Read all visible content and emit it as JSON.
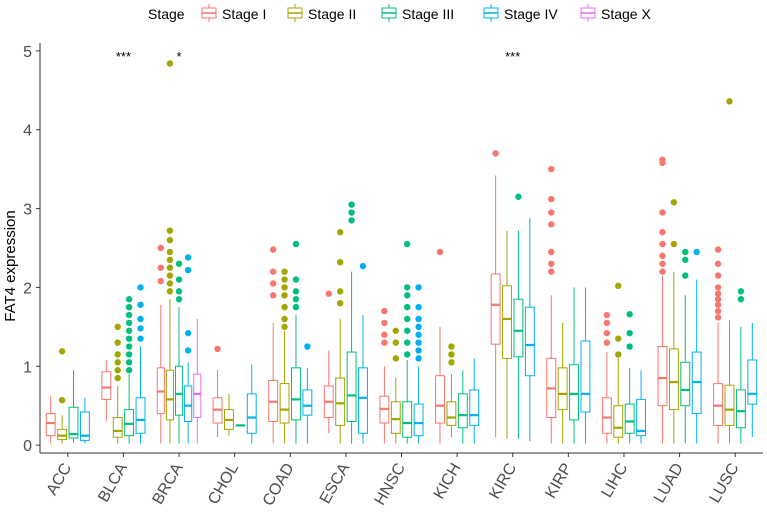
{
  "chart_data": {
    "type": "boxplot",
    "title": "",
    "xlabel": "",
    "ylabel": "FAT4 expression",
    "ylim": [
      -0.1,
      5.1
    ],
    "yticks": [
      0,
      1,
      2,
      3,
      4,
      5
    ],
    "grid": false,
    "legend": {
      "title": "Stage",
      "position": "top",
      "entries": [
        {
          "name": "Stage I",
          "color": "#F8766D"
        },
        {
          "name": "Stage II",
          "color": "#A3A500"
        },
        {
          "name": "Stage III",
          "color": "#00BF7D"
        },
        {
          "name": "Stage IV",
          "color": "#00B0F6"
        },
        {
          "name": "Stage X",
          "color": "#E76BF3"
        }
      ]
    },
    "categories": [
      "ACC",
      "BLCA",
      "BRCA",
      "CHOL",
      "COAD",
      "ESCA",
      "HNSC",
      "KICH",
      "KIRC",
      "KIRP",
      "LIHC",
      "LUAD",
      "LUSC"
    ],
    "significance": [
      {
        "category": "BLCA",
        "label": "***",
        "y": 4.95
      },
      {
        "category": "BRCA",
        "label": "*",
        "y": 4.95
      },
      {
        "category": "KIRC",
        "label": "***",
        "y": 4.95
      }
    ],
    "groups": [
      {
        "category": "ACC",
        "stages": [
          "Stage I",
          "Stage II",
          "Stage III",
          "Stage IV"
        ],
        "boxes": [
          {
            "stage": "Stage I",
            "min": 0.02,
            "q1": 0.12,
            "median": 0.28,
            "q3": 0.4,
            "max": 0.63,
            "outliers": []
          },
          {
            "stage": "Stage II",
            "min": 0.02,
            "q1": 0.07,
            "median": 0.12,
            "q3": 0.2,
            "max": 0.38,
            "outliers": [
              0.57,
              1.19
            ]
          },
          {
            "stage": "Stage III",
            "min": 0.03,
            "q1": 0.09,
            "median": 0.14,
            "q3": 0.48,
            "max": 0.95,
            "outliers": []
          },
          {
            "stage": "Stage IV",
            "min": 0.02,
            "q1": 0.06,
            "median": 0.12,
            "q3": 0.42,
            "max": 0.6,
            "outliers": []
          }
        ]
      },
      {
        "category": "BLCA",
        "stages": [
          "Stage I",
          "Stage II",
          "Stage III",
          "Stage IV"
        ],
        "boxes": [
          {
            "stage": "Stage I",
            "min": 0.3,
            "q1": 0.58,
            "median": 0.73,
            "q3": 0.93,
            "max": 1.08,
            "outliers": []
          },
          {
            "stage": "Stage II",
            "min": 0.02,
            "q1": 0.1,
            "median": 0.18,
            "q3": 0.35,
            "max": 0.75,
            "outliers": [
              0.85,
              0.95,
              1.05,
              1.15,
              1.3,
              1.5
            ]
          },
          {
            "stage": "Stage III",
            "min": 0.02,
            "q1": 0.12,
            "median": 0.27,
            "q3": 0.45,
            "max": 0.9,
            "outliers": [
              0.95,
              1.05,
              1.15,
              1.25,
              1.35,
              1.45,
              1.55,
              1.65,
              1.75,
              1.85
            ]
          },
          {
            "stage": "Stage IV",
            "min": 0.02,
            "q1": 0.15,
            "median": 0.32,
            "q3": 0.6,
            "max": 1.25,
            "outliers": [
              1.35,
              1.48,
              1.6,
              1.78,
              2.0
            ]
          }
        ]
      },
      {
        "category": "BRCA",
        "stages": [
          "Stage I",
          "Stage II",
          "Stage III",
          "Stage IV",
          "Stage X"
        ],
        "boxes": [
          {
            "stage": "Stage I",
            "min": 0.02,
            "q1": 0.4,
            "median": 0.68,
            "q3": 0.98,
            "max": 1.78,
            "outliers": [
              2.08,
              2.25,
              2.5
            ]
          },
          {
            "stage": "Stage II",
            "min": 0.02,
            "q1": 0.32,
            "median": 0.58,
            "q3": 0.95,
            "max": 1.85,
            "outliers": [
              1.95,
              2.05,
              2.15,
              2.25,
              2.35,
              2.45,
              2.6,
              2.72,
              4.84
            ]
          },
          {
            "stage": "Stage III",
            "min": 0.02,
            "q1": 0.38,
            "median": 0.65,
            "q3": 1.0,
            "max": 1.75,
            "outliers": [
              1.85,
              1.95,
              2.1,
              2.3
            ]
          },
          {
            "stage": "Stage IV",
            "min": 0.02,
            "q1": 0.3,
            "median": 0.5,
            "q3": 0.75,
            "max": 1.05,
            "outliers": [
              1.2,
              1.42,
              2.22,
              2.38
            ]
          },
          {
            "stage": "Stage X",
            "min": 0.02,
            "q1": 0.35,
            "median": 0.65,
            "q3": 0.9,
            "max": 1.6,
            "outliers": []
          }
        ]
      },
      {
        "category": "CHOL",
        "stages": [
          "Stage I",
          "Stage II",
          "Stage III",
          "Stage IV"
        ],
        "boxes": [
          {
            "stage": "Stage I",
            "min": 0.1,
            "q1": 0.28,
            "median": 0.45,
            "q3": 0.6,
            "max": 0.95,
            "outliers": [
              1.22
            ]
          },
          {
            "stage": "Stage II",
            "min": 0.12,
            "q1": 0.2,
            "median": 0.32,
            "q3": 0.45,
            "max": 0.65,
            "outliers": []
          },
          {
            "stage": "Stage III",
            "min": 0.25,
            "q1": 0.25,
            "median": 0.25,
            "q3": 0.25,
            "max": 0.25,
            "outliers": []
          },
          {
            "stage": "Stage IV",
            "min": 0.02,
            "q1": 0.15,
            "median": 0.35,
            "q3": 0.65,
            "max": 1.02,
            "outliers": []
          }
        ]
      },
      {
        "category": "COAD",
        "stages": [
          "Stage I",
          "Stage II",
          "Stage III",
          "Stage IV"
        ],
        "boxes": [
          {
            "stage": "Stage I",
            "min": 0.02,
            "q1": 0.3,
            "median": 0.55,
            "q3": 0.82,
            "max": 1.55,
            "outliers": [
              1.9,
              2.05,
              2.2,
              2.48
            ]
          },
          {
            "stage": "Stage II",
            "min": 0.02,
            "q1": 0.28,
            "median": 0.45,
            "q3": 0.78,
            "max": 1.45,
            "outliers": [
              1.5,
              1.6,
              1.75,
              1.9,
              2.0,
              2.1,
              2.2
            ]
          },
          {
            "stage": "Stage III",
            "min": 0.02,
            "q1": 0.32,
            "median": 0.58,
            "q3": 0.98,
            "max": 1.65,
            "outliers": [
              1.75,
              1.85,
              1.95,
              2.1,
              2.55
            ]
          },
          {
            "stage": "Stage IV",
            "min": 0.02,
            "q1": 0.38,
            "median": 0.5,
            "q3": 0.7,
            "max": 0.98,
            "outliers": [
              1.25
            ]
          }
        ]
      },
      {
        "category": "ESCA",
        "stages": [
          "Stage I",
          "Stage II",
          "Stage III",
          "Stage IV"
        ],
        "boxes": [
          {
            "stage": "Stage I",
            "min": 0.15,
            "q1": 0.35,
            "median": 0.55,
            "q3": 0.75,
            "max": 1.2,
            "outliers": [
              1.92
            ]
          },
          {
            "stage": "Stage II",
            "min": 0.02,
            "q1": 0.25,
            "median": 0.53,
            "q3": 0.85,
            "max": 1.6,
            "outliers": [
              1.8,
              1.95,
              2.32,
              2.7
            ]
          },
          {
            "stage": "Stage III",
            "min": 0.02,
            "q1": 0.3,
            "median": 0.63,
            "q3": 1.18,
            "max": 2.2,
            "outliers": [
              2.85,
              2.95,
              3.05
            ]
          },
          {
            "stage": "Stage IV",
            "min": 0.02,
            "q1": 0.15,
            "median": 0.6,
            "q3": 0.98,
            "max": 1.65,
            "outliers": [
              2.27
            ]
          }
        ]
      },
      {
        "category": "HNSC",
        "stages": [
          "Stage I",
          "Stage II",
          "Stage III",
          "Stage IV"
        ],
        "boxes": [
          {
            "stage": "Stage I",
            "min": 0.02,
            "q1": 0.28,
            "median": 0.46,
            "q3": 0.62,
            "max": 1.0,
            "outliers": [
              1.3,
              1.4,
              1.55,
              1.7
            ]
          },
          {
            "stage": "Stage II",
            "min": 0.02,
            "q1": 0.15,
            "median": 0.33,
            "q3": 0.55,
            "max": 0.85,
            "outliers": [
              1.1,
              1.3,
              1.45
            ]
          },
          {
            "stage": "Stage III",
            "min": 0.02,
            "q1": 0.1,
            "median": 0.28,
            "q3": 0.55,
            "max": 1.08,
            "outliers": [
              1.15,
              1.3,
              1.45,
              1.6,
              1.75,
              1.9,
              2.0,
              2.55
            ]
          },
          {
            "stage": "Stage IV",
            "min": 0.02,
            "q1": 0.12,
            "median": 0.28,
            "q3": 0.52,
            "max": 1.0,
            "outliers": [
              1.1,
              1.2,
              1.3,
              1.4,
              1.5,
              1.6,
              1.75,
              2.0
            ]
          }
        ]
      },
      {
        "category": "KICH",
        "stages": [
          "Stage I",
          "Stage II",
          "Stage III",
          "Stage IV"
        ],
        "boxes": [
          {
            "stage": "Stage I",
            "min": 0.02,
            "q1": 0.28,
            "median": 0.5,
            "q3": 0.88,
            "max": 1.5,
            "outliers": [
              2.45
            ]
          },
          {
            "stage": "Stage II",
            "min": 0.1,
            "q1": 0.25,
            "median": 0.35,
            "q3": 0.55,
            "max": 0.9,
            "outliers": [
              1.05,
              1.15,
              1.25
            ]
          },
          {
            "stage": "Stage III",
            "min": 0.02,
            "q1": 0.22,
            "median": 0.38,
            "q3": 0.65,
            "max": 0.95,
            "outliers": []
          },
          {
            "stage": "Stage IV",
            "min": 0.02,
            "q1": 0.25,
            "median": 0.38,
            "q3": 0.7,
            "max": 1.1,
            "outliers": []
          }
        ]
      },
      {
        "category": "KIRC",
        "stages": [
          "Stage I",
          "Stage II",
          "Stage III",
          "Stage IV"
        ],
        "boxes": [
          {
            "stage": "Stage I",
            "min": 0.1,
            "q1": 1.28,
            "median": 1.78,
            "q3": 2.17,
            "max": 3.42,
            "outliers": [
              3.7
            ]
          },
          {
            "stage": "Stage II",
            "min": 0.08,
            "q1": 1.1,
            "median": 1.6,
            "q3": 2.02,
            "max": 2.72,
            "outliers": []
          },
          {
            "stage": "Stage III",
            "min": 0.08,
            "q1": 1.12,
            "median": 1.45,
            "q3": 1.85,
            "max": 2.72,
            "outliers": [
              3.15
            ]
          },
          {
            "stage": "Stage IV",
            "min": 0.05,
            "q1": 0.88,
            "median": 1.27,
            "q3": 1.75,
            "max": 2.88,
            "outliers": []
          }
        ]
      },
      {
        "category": "KIRP",
        "stages": [
          "Stage I",
          "Stage II",
          "Stage III",
          "Stage IV"
        ],
        "boxes": [
          {
            "stage": "Stage I",
            "min": 0.02,
            "q1": 0.35,
            "median": 0.72,
            "q3": 1.1,
            "max": 1.9,
            "outliers": [
              2.2,
              2.3,
              2.45,
              2.8,
              2.95,
              3.12,
              3.5
            ]
          },
          {
            "stage": "Stage II",
            "min": 0.02,
            "q1": 0.45,
            "median": 0.65,
            "q3": 0.98,
            "max": 1.55,
            "outliers": []
          },
          {
            "stage": "Stage III",
            "min": 0.02,
            "q1": 0.32,
            "median": 0.65,
            "q3": 1.02,
            "max": 2.0,
            "outliers": []
          },
          {
            "stage": "Stage IV",
            "min": 0.02,
            "q1": 0.42,
            "median": 0.65,
            "q3": 1.32,
            "max": 2.0,
            "outliers": []
          }
        ]
      },
      {
        "category": "LIHC",
        "stages": [
          "Stage I",
          "Stage II",
          "Stage III",
          "Stage IV"
        ],
        "boxes": [
          {
            "stage": "Stage I",
            "min": 0.02,
            "q1": 0.15,
            "median": 0.35,
            "q3": 0.6,
            "max": 1.18,
            "outliers": [
              1.3,
              1.42,
              1.55,
              1.65
            ]
          },
          {
            "stage": "Stage II",
            "min": 0.02,
            "q1": 0.1,
            "median": 0.22,
            "q3": 0.5,
            "max": 1.1,
            "outliers": [
              1.15,
              1.35,
              2.02
            ]
          },
          {
            "stage": "Stage III",
            "min": 0.02,
            "q1": 0.15,
            "median": 0.3,
            "q3": 0.52,
            "max": 0.98,
            "outliers": [
              1.25,
              1.42,
              1.66
            ]
          },
          {
            "stage": "Stage IV",
            "min": 0.02,
            "q1": 0.12,
            "median": 0.18,
            "q3": 0.58,
            "max": 0.95,
            "outliers": []
          }
        ]
      },
      {
        "category": "LUAD",
        "stages": [
          "Stage I",
          "Stage II",
          "Stage III",
          "Stage IV"
        ],
        "boxes": [
          {
            "stage": "Stage I",
            "min": 0.02,
            "q1": 0.5,
            "median": 0.85,
            "q3": 1.25,
            "max": 2.15,
            "outliers": [
              2.2,
              2.3,
              2.4,
              2.55,
              2.7,
              2.95,
              3.58,
              3.62
            ]
          },
          {
            "stage": "Stage II",
            "min": 0.02,
            "q1": 0.45,
            "median": 0.8,
            "q3": 1.22,
            "max": 2.2,
            "outliers": [
              2.55,
              3.08
            ]
          },
          {
            "stage": "Stage III",
            "min": 0.02,
            "q1": 0.5,
            "median": 0.7,
            "q3": 1.05,
            "max": 1.9,
            "outliers": [
              2.15,
              2.35,
              2.45
            ]
          },
          {
            "stage": "Stage IV",
            "min": 0.02,
            "q1": 0.4,
            "median": 0.8,
            "q3": 1.18,
            "max": 2.1,
            "outliers": [
              2.45
            ]
          }
        ]
      },
      {
        "category": "LUSC",
        "stages": [
          "Stage I",
          "Stage II",
          "Stage III",
          "Stage IV"
        ],
        "boxes": [
          {
            "stage": "Stage I",
            "min": 0.02,
            "q1": 0.25,
            "median": 0.5,
            "q3": 0.78,
            "max": 1.55,
            "outliers": [
              1.62,
              1.7,
              1.78,
              1.85,
              1.92,
              2.0,
              2.15,
              2.3,
              2.48
            ]
          },
          {
            "stage": "Stage II",
            "min": 0.02,
            "q1": 0.25,
            "median": 0.45,
            "q3": 0.76,
            "max": 1.58,
            "outliers": [
              4.36
            ]
          },
          {
            "stage": "Stage III",
            "min": 0.02,
            "q1": 0.22,
            "median": 0.43,
            "q3": 0.7,
            "max": 1.5,
            "outliers": [
              1.85,
              1.95
            ]
          },
          {
            "stage": "Stage IV",
            "min": 0.1,
            "q1": 0.52,
            "median": 0.65,
            "q3": 1.08,
            "max": 1.55,
            "outliers": []
          }
        ]
      }
    ]
  }
}
